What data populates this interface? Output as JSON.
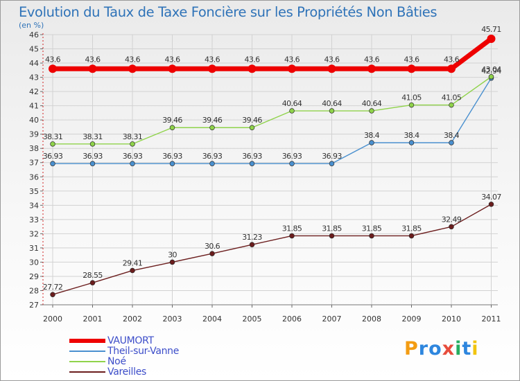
{
  "chart_data": {
    "type": "line",
    "title": "Evolution du Taux de Taxe Foncière sur les Propriétés Non Bâties",
    "ylabel": "(en %)",
    "xlabel": "",
    "x": [
      "2000",
      "2001",
      "2002",
      "2003",
      "2004",
      "2005",
      "2006",
      "2007",
      "2008",
      "2009",
      "2010",
      "2011"
    ],
    "ylim": [
      27,
      46
    ],
    "yticks": [
      27,
      28,
      29,
      30,
      31,
      32,
      33,
      34,
      35,
      36,
      37,
      38,
      39,
      40,
      41,
      42,
      43,
      44,
      45,
      46
    ],
    "grid": true,
    "legend_position": "bottom-left",
    "series": [
      {
        "name": "VAUMORT",
        "color": "#ee0000",
        "emphasis": true,
        "values": [
          43.6,
          43.6,
          43.6,
          43.6,
          43.6,
          43.6,
          43.6,
          43.6,
          43.6,
          43.6,
          43.6,
          45.71
        ],
        "labels": [
          "43.6",
          "43.6",
          "43.6",
          "43.6",
          "43.6",
          "43.6",
          "43.6",
          "43.6",
          "43.6",
          "43.6",
          "43.6",
          "45.71"
        ]
      },
      {
        "name": "Theil-sur-Vanne",
        "color": "#4a90cf",
        "values": [
          36.93,
          36.93,
          36.93,
          36.93,
          36.93,
          36.93,
          36.93,
          36.93,
          38.4,
          38.4,
          38.4,
          42.94
        ],
        "labels": [
          "36.93",
          "36.93",
          "36.93",
          "36.93",
          "36.93",
          "36.93",
          "36.93",
          "36.93",
          "38.4",
          "38.4",
          "38.4",
          "42.94"
        ]
      },
      {
        "name": "Noé",
        "color": "#8fd34a",
        "values": [
          38.31,
          38.31,
          38.31,
          39.46,
          39.46,
          39.46,
          40.64,
          40.64,
          40.64,
          41.05,
          41.05,
          43.04
        ],
        "labels": [
          "38.31",
          "38.31",
          "38.31",
          "39.46",
          "39.46",
          "39.46",
          "40.64",
          "40.64",
          "40.64",
          "41.05",
          "41.05",
          "43.04"
        ]
      },
      {
        "name": "Vareilles",
        "color": "#6b1d1d",
        "values": [
          27.72,
          28.55,
          29.41,
          30,
          30.6,
          31.23,
          31.85,
          31.85,
          31.85,
          31.85,
          32.49,
          34.07
        ],
        "labels": [
          "27.72",
          "28.55",
          "29.41",
          "30",
          "30.6",
          "31.23",
          "31.85",
          "31.85",
          "31.85",
          "31.85",
          "32.49",
          "34.07"
        ]
      }
    ]
  },
  "legend": {
    "items": [
      {
        "label": "VAUMORT",
        "color": "#ee0000"
      },
      {
        "label": "Theil-sur-Vanne",
        "color": "#4a90cf"
      },
      {
        "label": "Noé",
        "color": "#8fd34a"
      },
      {
        "label": "Vareilles",
        "color": "#6b1d1d"
      }
    ]
  },
  "logo": {
    "text": "Proxiti",
    "letter_colors": [
      "#f39c12",
      "#2e86de",
      "#2e86de",
      "#e74c3c",
      "#27ae60",
      "#2e86de",
      "#f1c40f"
    ]
  }
}
